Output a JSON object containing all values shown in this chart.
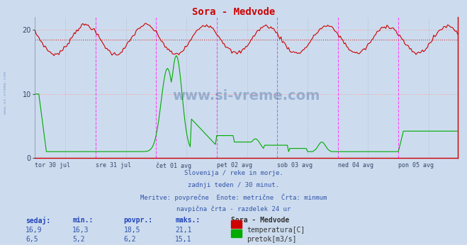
{
  "title": "Sora - Medvode",
  "background_color": "#ccdcee",
  "plot_bg_color": "#ccdcee",
  "temp_color": "#cc0000",
  "flow_color": "#00aa00",
  "avg_temp_line": 18.5,
  "x_labels": [
    "tor 30 jul",
    "sre 31 jul",
    "čet 01 avg",
    "pet 02 avg",
    "sob 03 avg",
    "ned 04 avg",
    "pon 05 avg"
  ],
  "y_ticks": [
    0,
    10,
    20
  ],
  "y_min": 0,
  "y_max": 22,
  "footer_lines": [
    "Slovenija / reke in morje.",
    "zadnji teden / 30 minut.",
    "Meritve: povprečne  Enote: metrične  Črta: minmum",
    "navpična črta - razdelek 24 ur"
  ],
  "watermark": "www.si-vreme.com",
  "sidebar_text": "www.si-vreme.com",
  "legend_title": "Sora - Medvode",
  "legend_items": [
    "temperatura[C]",
    "pretok[m3/s]"
  ],
  "legend_colors": [
    "#cc0000",
    "#00aa00"
  ],
  "table_headers": [
    "sedaj:",
    "min.:",
    "povpr.:",
    "maks.:"
  ],
  "table_row1": [
    "16,9",
    "16,3",
    "18,5",
    "21,1"
  ],
  "table_row2": [
    "6,5",
    "5,2",
    "6,2",
    "15,1"
  ],
  "text_color_blue": "#3355aa",
  "text_color_header": "#2244bb",
  "grid_h_color": "#ff9999",
  "grid_v_color": "#ff44ff",
  "grid_v_mid_color": "#aaaacc",
  "n_days": 7,
  "n_per_day": 48
}
